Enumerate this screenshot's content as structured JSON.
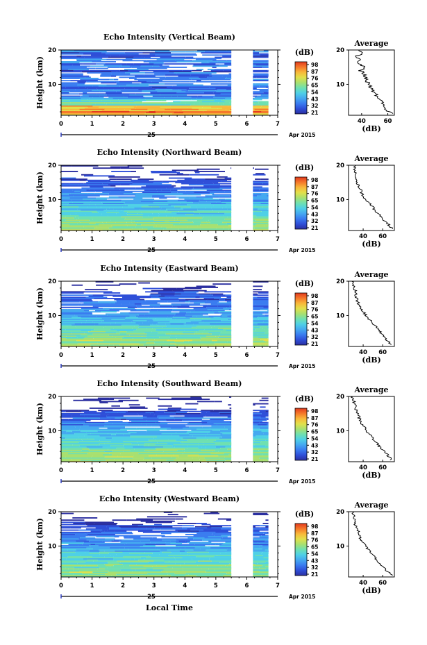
{
  "panels": [
    {
      "title": "Echo Intensity (Vertical Beam)",
      "ylabel": "Height (km)",
      "yticks": [
        "20",
        "10"
      ],
      "xticks": [
        "0",
        "1",
        "2",
        "3",
        "4",
        "5",
        "6",
        "7"
      ],
      "date_day": "25",
      "date_month": "Apr 2015",
      "colorbar": {
        "unit": "(dB)",
        "ticks": [
          "98",
          "87",
          "76",
          "65",
          "54",
          "43",
          "32",
          "21"
        ]
      },
      "avg": {
        "title": "Average",
        "xlabel": "(dB)",
        "xticks": [
          "40",
          "60"
        ],
        "yticks": [
          "20",
          "10"
        ]
      }
    },
    {
      "title": "Echo Intensity (Northward Beam)",
      "ylabel": "Height (km)",
      "yticks": [
        "20",
        "10"
      ],
      "xticks": [
        "0",
        "1",
        "2",
        "3",
        "4",
        "5",
        "6",
        "7"
      ],
      "date_day": "25",
      "date_month": "Apr 2015",
      "colorbar": {
        "unit": "(dB)",
        "ticks": [
          "98",
          "87",
          "76",
          "65",
          "54",
          "43",
          "32",
          "21"
        ]
      },
      "avg": {
        "title": "Average",
        "xlabel": "(dB)",
        "xticks": [
          "40",
          "60"
        ],
        "yticks": [
          "20",
          "10"
        ]
      }
    },
    {
      "title": "Echo Intensity (Eastward Beam)",
      "ylabel": "Height (km)",
      "yticks": [
        "20",
        "10"
      ],
      "xticks": [
        "0",
        "1",
        "2",
        "3",
        "4",
        "5",
        "6",
        "7"
      ],
      "date_day": "25",
      "date_month": "Apr 2015",
      "colorbar": {
        "unit": "(dB)",
        "ticks": [
          "98",
          "87",
          "76",
          "65",
          "54",
          "43",
          "32",
          "21"
        ]
      },
      "avg": {
        "title": "Average",
        "xlabel": "(dB)",
        "xticks": [
          "40",
          "60"
        ],
        "yticks": [
          "20",
          "10"
        ]
      }
    },
    {
      "title": "Echo Intensity (Southward Beam)",
      "ylabel": "Height (km)",
      "yticks": [
        "20",
        "10"
      ],
      "xticks": [
        "0",
        "1",
        "2",
        "3",
        "4",
        "5",
        "6",
        "7"
      ],
      "date_day": "25",
      "date_month": "Apr 2015",
      "colorbar": {
        "unit": "(dB)",
        "ticks": [
          "98",
          "87",
          "76",
          "65",
          "54",
          "43",
          "32",
          "21"
        ]
      },
      "avg": {
        "title": "Average",
        "xlabel": "(dB)",
        "xticks": [
          "40",
          "60"
        ],
        "yticks": [
          "20",
          "10"
        ]
      }
    },
    {
      "title": "Echo Intensity (Westward Beam)",
      "ylabel": "Height (km)",
      "yticks": [
        "20",
        "10"
      ],
      "xticks": [
        "0",
        "1",
        "2",
        "3",
        "4",
        "5",
        "6",
        "7"
      ],
      "date_day": "25",
      "date_month": "Apr 2015",
      "colorbar": {
        "unit": "(dB)",
        "ticks": [
          "98",
          "87",
          "76",
          "65",
          "54",
          "43",
          "32",
          "21"
        ]
      },
      "avg": {
        "title": "Average",
        "xlabel": "(dB)",
        "xticks": [
          "40",
          "60"
        ],
        "yticks": [
          "20",
          "10"
        ]
      }
    }
  ],
  "footer": {
    "xlabel": "Local Time"
  },
  "colormap": [
    "#2b2fa0",
    "#2f4fd8",
    "#3a7cf0",
    "#45a9f0",
    "#4fd0e6",
    "#6fe0b0",
    "#a8e070",
    "#e2e04a",
    "#f8b83a",
    "#f5782a",
    "#e23a1e"
  ],
  "chart_data": [
    {
      "type": "heatmap",
      "title": "Echo Intensity (Vertical Beam)",
      "xlabel": "",
      "ylabel": "Height (km)",
      "xlim": [
        0,
        7
      ],
      "ylim": [
        1,
        20
      ],
      "color_range_db": [
        21,
        98
      ],
      "data_gap": [
        5.5,
        6.2
      ],
      "data_end": 6.7,
      "units": "dB",
      "average_profile": {
        "height_km": [
          1.5,
          3,
          5,
          7,
          9,
          11,
          13,
          14,
          15,
          16,
          17,
          18,
          19,
          20
        ],
        "db": [
          63,
          57,
          55,
          51,
          47,
          44,
          42,
          39,
          43,
          37,
          39,
          35,
          40,
          39
        ],
        "xlim": [
          30,
          65
        ]
      }
    },
    {
      "type": "heatmap",
      "title": "Echo Intensity (Northward Beam)",
      "xlabel": "",
      "ylabel": "Height (km)",
      "xlim": [
        0,
        7
      ],
      "ylim": [
        1,
        20
      ],
      "color_range_db": [
        21,
        98
      ],
      "data_gap": [
        5.5,
        6.2
      ],
      "data_end": 6.7,
      "units": "dB",
      "average_profile": {
        "height_km": [
          1.5,
          3,
          5,
          7,
          9,
          11,
          13,
          15,
          17,
          19,
          20
        ],
        "db": [
          70,
          65,
          58,
          52,
          46,
          40,
          37,
          34,
          32,
          31,
          32
        ],
        "xlim": [
          25,
          72
        ]
      }
    },
    {
      "type": "heatmap",
      "title": "Echo Intensity (Eastward Beam)",
      "xlabel": "",
      "ylabel": "Height (km)",
      "xlim": [
        0,
        7
      ],
      "ylim": [
        1,
        20
      ],
      "color_range_db": [
        21,
        98
      ],
      "data_gap": [
        5.5,
        6.2
      ],
      "data_end": 6.7,
      "units": "dB",
      "average_profile": {
        "height_km": [
          1.5,
          3,
          5,
          7,
          9,
          11,
          13,
          15,
          17,
          19,
          20
        ],
        "db": [
          68,
          64,
          58,
          52,
          46,
          40,
          36,
          33,
          32,
          30,
          29
        ],
        "xlim": [
          25,
          72
        ]
      }
    },
    {
      "type": "heatmap",
      "title": "Echo Intensity (Southward Beam)",
      "xlabel": "",
      "ylabel": "Height (km)",
      "xlim": [
        0,
        7
      ],
      "ylim": [
        1,
        20
      ],
      "color_range_db": [
        21,
        98
      ],
      "data_gap": [
        5.5,
        6.2
      ],
      "data_end": 6.7,
      "units": "dB",
      "average_profile": {
        "height_km": [
          1.5,
          3,
          5,
          7,
          9,
          11,
          13,
          15,
          17,
          19,
          20
        ],
        "db": [
          69,
          65,
          58,
          52,
          46,
          41,
          37,
          34,
          32,
          30,
          29
        ],
        "xlim": [
          25,
          72
        ]
      }
    },
    {
      "type": "heatmap",
      "title": "Echo Intensity (Westward Beam)",
      "xlabel": "Local Time",
      "ylabel": "Height (km)",
      "xlim": [
        0,
        7
      ],
      "ylim": [
        1,
        20
      ],
      "color_range_db": [
        21,
        98
      ],
      "data_gap": [
        5.5,
        6.2
      ],
      "data_end": 6.7,
      "units": "dB",
      "average_profile": {
        "height_km": [
          1.5,
          3,
          5,
          7,
          9,
          11,
          13,
          15,
          17,
          19,
          20
        ],
        "db": [
          69,
          64,
          57,
          51,
          45,
          40,
          36,
          34,
          31,
          30,
          29
        ],
        "xlim": [
          25,
          72
        ]
      }
    }
  ]
}
